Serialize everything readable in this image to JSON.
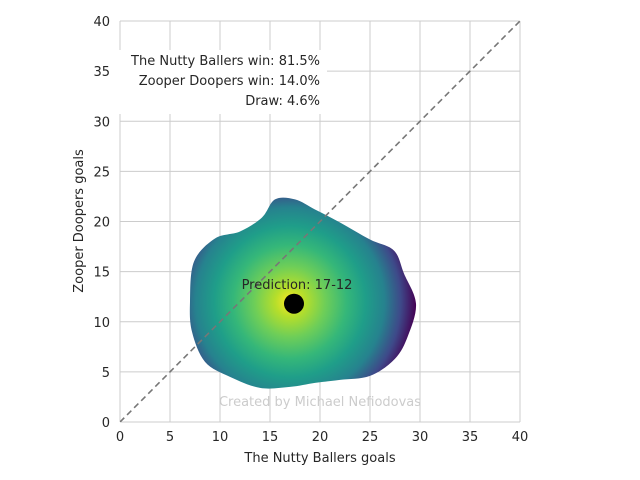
{
  "chart_data": {
    "type": "heatmap",
    "xlabel": "The Nutty Ballers goals",
    "ylabel": "Zooper Doopers goals",
    "xlim": [
      0,
      40
    ],
    "ylim": [
      0,
      40
    ],
    "xticks": [
      0,
      5,
      10,
      15,
      20,
      25,
      30,
      35,
      40
    ],
    "yticks": [
      0,
      5,
      10,
      15,
      20,
      25,
      30,
      35,
      40
    ],
    "x_tick_labels": [
      "0",
      "5",
      "10",
      "15",
      "20",
      "25",
      "30",
      "35",
      "40"
    ],
    "y_tick_labels": [
      "0",
      "5",
      "10",
      "15",
      "20",
      "25",
      "30",
      "35",
      "40"
    ],
    "grid": true,
    "colormap": "viridis",
    "density_peak": [
      17,
      12
    ],
    "density_contour": [
      [
        17.5,
        22.2
      ],
      [
        19.5,
        21.2
      ],
      [
        22,
        19.9
      ],
      [
        25,
        18.2
      ],
      [
        27.4,
        17.1
      ],
      [
        28.4,
        14.8
      ],
      [
        29.6,
        11.8
      ],
      [
        28.8,
        8.6
      ],
      [
        27.5,
        6.3
      ],
      [
        25,
        4.6
      ],
      [
        22,
        4.2
      ],
      [
        19.5,
        3.9
      ],
      [
        17,
        3.5
      ],
      [
        14,
        3.4
      ],
      [
        11,
        4.5
      ],
      [
        8.5,
        6
      ],
      [
        7.2,
        9
      ],
      [
        7,
        12
      ],
      [
        7.4,
        16
      ],
      [
        9.5,
        18.3
      ],
      [
        12,
        19
      ],
      [
        14.2,
        20.4
      ],
      [
        15.5,
        22.2
      ]
    ],
    "diagonal": {
      "from": [
        0,
        0
      ],
      "to": [
        40,
        40
      ],
      "style": "dashed",
      "color": "#777777"
    },
    "point": {
      "x": 17.4,
      "y": 11.8,
      "label": "Prediction: 17-12"
    },
    "annotations": {
      "home_win": "The Nutty Ballers win: 81.5%",
      "away_win": "Zooper Doopers win: 14.0%",
      "draw": "Draw: 4.6%"
    },
    "credit": "Created by Michael Nefiodovas",
    "colors": {
      "grid": "#cccccc",
      "diagonal": "#777777",
      "point": "#000000",
      "credit": "#cccccc"
    }
  }
}
